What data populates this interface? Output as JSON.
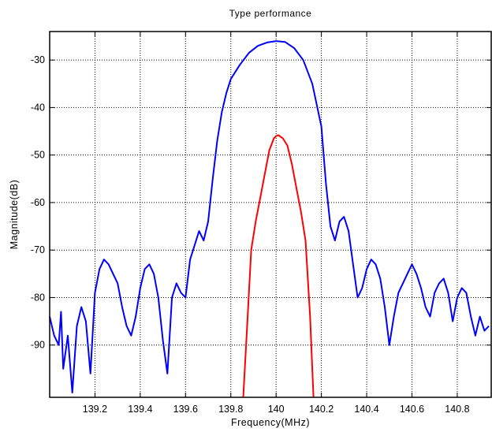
{
  "chart_data": {
    "type": "line",
    "title": "Type performance",
    "xlabel": "Frequency(MHz)",
    "ylabel": "Magnitude(dB)",
    "xlim": [
      139.0,
      140.95
    ],
    "ylim": [
      -101,
      -24
    ],
    "x_ticks": [
      139.2,
      139.4,
      139.6,
      139.8,
      140.0,
      140.2,
      140.4,
      140.6,
      140.8
    ],
    "x_tick_labels": [
      "139.2",
      "139.4",
      "139.6",
      "139.8",
      "140",
      "140.2",
      "140.4",
      "140.6",
      "140.8"
    ],
    "y_ticks": [
      -30,
      -40,
      -50,
      -60,
      -70,
      -80,
      -90
    ],
    "y_tick_labels": [
      "-30",
      "-40",
      "-50",
      "-60",
      "-70",
      "-80",
      "-90"
    ],
    "grid": true,
    "legend": "none",
    "series": [
      {
        "color": "#0000ff",
        "x": [
          139.0,
          139.02,
          139.04,
          139.05,
          139.06,
          139.08,
          139.1,
          139.12,
          139.14,
          139.16,
          139.18,
          139.2,
          139.22,
          139.24,
          139.26,
          139.28,
          139.3,
          139.32,
          139.34,
          139.36,
          139.38,
          139.4,
          139.42,
          139.44,
          139.46,
          139.48,
          139.5,
          139.52,
          139.54,
          139.56,
          139.58,
          139.6,
          139.62,
          139.64,
          139.66,
          139.68,
          139.7,
          139.72,
          139.74,
          139.76,
          139.78,
          139.8,
          139.84,
          139.88,
          139.92,
          139.96,
          140.0,
          140.04,
          140.08,
          140.12,
          140.16,
          140.2,
          140.22,
          140.24,
          140.26,
          140.28,
          140.3,
          140.32,
          140.34,
          140.36,
          140.38,
          140.4,
          140.42,
          140.44,
          140.46,
          140.48,
          140.5,
          140.52,
          140.54,
          140.56,
          140.58,
          140.6,
          140.62,
          140.64,
          140.66,
          140.68,
          140.7,
          140.72,
          140.74,
          140.76,
          140.78,
          140.8,
          140.82,
          140.84,
          140.86,
          140.88,
          140.9,
          140.92,
          140.94
        ],
        "y": [
          -84,
          -88,
          -90,
          -83,
          -95,
          -88,
          -100,
          -86,
          -82,
          -85,
          -96,
          -79,
          -74,
          -72,
          -73,
          -75,
          -77,
          -82,
          -86,
          -88,
          -84,
          -78,
          -74,
          -73,
          -75,
          -80,
          -89,
          -96,
          -80,
          -77,
          -79,
          -80,
          -72,
          -69,
          -66,
          -68,
          -64,
          -55,
          -47,
          -41,
          -37,
          -34,
          -31,
          -28.5,
          -27,
          -26.3,
          -26,
          -26.2,
          -27.5,
          -30,
          -35,
          -44,
          -56,
          -65,
          -68,
          -64,
          -63,
          -66,
          -73,
          -80,
          -78,
          -74,
          -72,
          -73,
          -76,
          -82,
          -90,
          -84,
          -79,
          -77,
          -75,
          -73,
          -75,
          -78,
          -82,
          -84,
          -79,
          -77,
          -76,
          -79,
          -85,
          -80,
          -78,
          -79,
          -84,
          -88,
          -84,
          -87,
          -86
        ]
      },
      {
        "color": "#ff0000",
        "x": [
          139.855,
          139.87,
          139.89,
          139.91,
          139.93,
          139.95,
          139.97,
          139.99,
          140.0,
          140.01,
          140.03,
          140.05,
          140.07,
          140.09,
          140.11,
          140.13,
          140.15,
          140.165
        ],
        "y": [
          -101,
          -88,
          -70,
          -64,
          -59,
          -54,
          -49,
          -46.5,
          -46,
          -45.8,
          -46.5,
          -48,
          -52,
          -57,
          -62,
          -68,
          -84,
          -101
        ]
      }
    ]
  }
}
